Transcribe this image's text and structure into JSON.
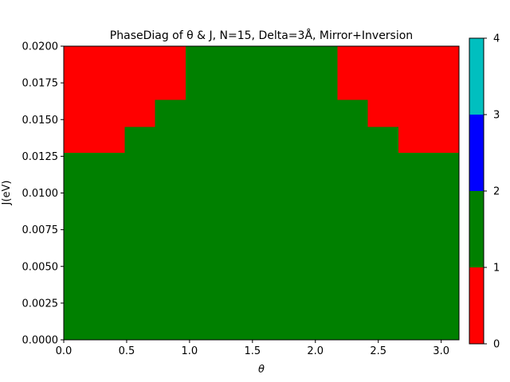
{
  "chart_data": {
    "type": "heatmap",
    "title": "PhaseDiag of θ & J, N=15, Delta=3Å, Mirror+Inversion",
    "xlabel": "θ",
    "ylabel": "J(eV)",
    "xlim": [
      0,
      3.1416
    ],
    "ylim": [
      0,
      0.02
    ],
    "x_ticks": [
      0.0,
      0.5,
      1.0,
      1.5,
      2.0,
      2.5,
      3.0
    ],
    "x_tick_labels": [
      "0.0",
      "0.5",
      "1.0",
      "1.5",
      "2.0",
      "2.5",
      "3.0"
    ],
    "y_ticks": [
      0,
      0.0025,
      0.005,
      0.0075,
      0.01,
      0.0125,
      0.015,
      0.0175,
      0.02
    ],
    "y_tick_labels": [
      "0.0000",
      "0.0025",
      "0.0050",
      "0.0075",
      "0.0100",
      "0.0125",
      "0.0150",
      "0.0175",
      "0.0200"
    ],
    "grid": false,
    "background_phase": 1,
    "regions": [
      {
        "phase": 0,
        "x0": 0.0,
        "x1": 0.485,
        "y0": 0.01275,
        "y1": 0.02
      },
      {
        "phase": 0,
        "x0": 0.485,
        "x1": 0.725,
        "y0": 0.0145,
        "y1": 0.02
      },
      {
        "phase": 0,
        "x0": 0.725,
        "x1": 0.97,
        "y0": 0.01635,
        "y1": 0.02
      },
      {
        "phase": 0,
        "x0": 2.175,
        "x1": 2.415,
        "y0": 0.01635,
        "y1": 0.02
      },
      {
        "phase": 0,
        "x0": 2.415,
        "x1": 2.66,
        "y0": 0.0145,
        "y1": 0.02
      },
      {
        "phase": 0,
        "x0": 2.66,
        "x1": 3.1416,
        "y0": 0.01275,
        "y1": 0.02
      }
    ],
    "colorbar": {
      "range": [
        0,
        4
      ],
      "ticks": [
        0,
        1,
        2,
        3,
        4
      ],
      "tick_labels": [
        "0",
        "1",
        "2",
        "3",
        "4"
      ],
      "bins": [
        {
          "from": 0,
          "to": 1,
          "color": "#ff0000"
        },
        {
          "from": 1,
          "to": 2,
          "color": "#008000"
        },
        {
          "from": 2,
          "to": 3,
          "color": "#0000ff"
        },
        {
          "from": 3,
          "to": 4,
          "color": "#00bfbf"
        }
      ]
    }
  }
}
